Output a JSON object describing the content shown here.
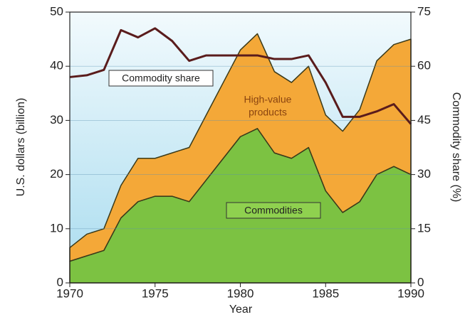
{
  "chart_data": {
    "type": "area",
    "stacked": true,
    "x": [
      1970,
      1971,
      1972,
      1973,
      1974,
      1975,
      1976,
      1977,
      1978,
      1979,
      1980,
      1981,
      1982,
      1983,
      1984,
      1985,
      1986,
      1987,
      1988,
      1989,
      1990
    ],
    "series": [
      {
        "name": "Commodities",
        "color": "#7cc242",
        "values": [
          4,
          5,
          6,
          12,
          15,
          16,
          16,
          15,
          19,
          23,
          27,
          28.5,
          24,
          23,
          25,
          17,
          13,
          15,
          20,
          21.5,
          20
        ]
      },
      {
        "name": "High-value products",
        "color": "#f4a838",
        "values": [
          2.5,
          4,
          4,
          6,
          8,
          7,
          8,
          10,
          12,
          14,
          16,
          17.5,
          15,
          14,
          15,
          14,
          15,
          17,
          21,
          22.5,
          25
        ]
      },
      {
        "name": "Commodity share",
        "color": "#5a1c1c",
        "type": "line",
        "axis": "y2",
        "values": [
          57,
          57.5,
          59,
          70,
          68,
          70.5,
          67,
          61.5,
          63,
          63,
          63,
          63,
          62,
          62,
          63,
          55.5,
          46,
          46,
          47.5,
          49.5,
          44
        ]
      }
    ],
    "annotations": [
      "Commodity share",
      "High-value",
      "products",
      "Commodities"
    ],
    "xlabel": "Year",
    "ylabel": "U.S. dollars (billion)",
    "y2label": "Commodity share (%)",
    "xlim": [
      1970,
      1990
    ],
    "xticks": [
      1970,
      1975,
      1980,
      1985,
      1990
    ],
    "ylim": [
      0,
      50
    ],
    "yticks": [
      0,
      10,
      20,
      30,
      40,
      50
    ],
    "y2lim": [
      0,
      75
    ],
    "y2ticks": [
      0,
      15,
      30,
      45,
      60,
      75
    ],
    "grid": true
  }
}
